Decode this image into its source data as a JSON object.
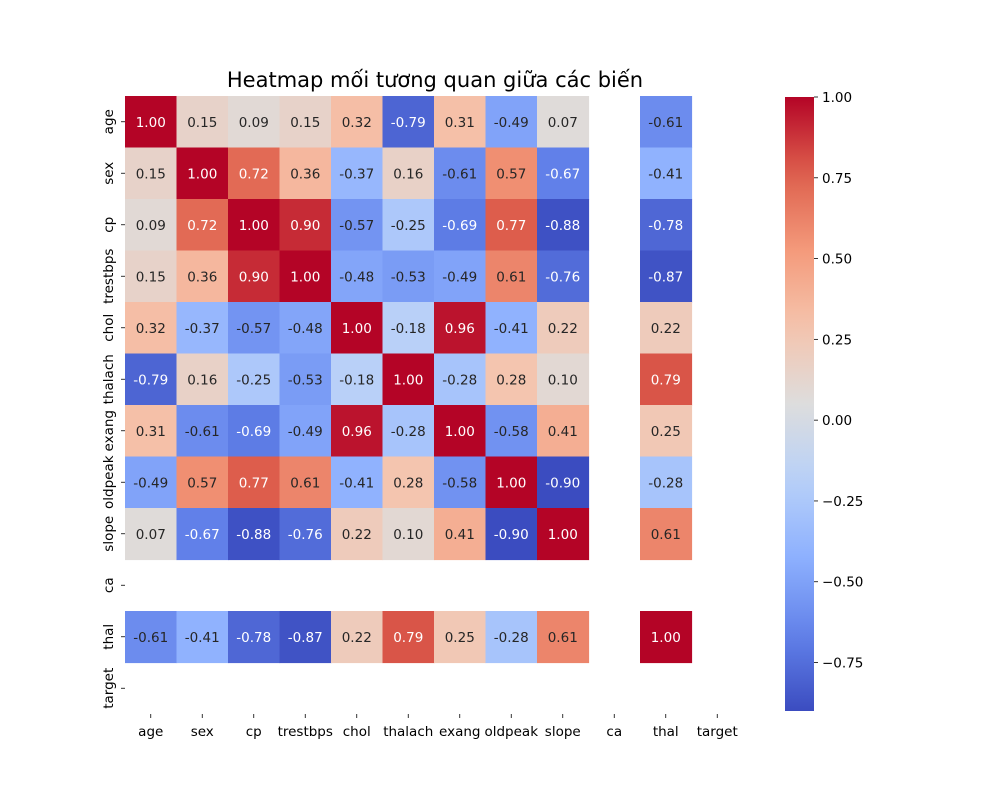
{
  "chart_data": {
    "type": "heatmap",
    "title": "Heatmap mối tương quan giữa các biến",
    "colormap": "coolwarm",
    "vmin": -0.9,
    "vmax": 1.0,
    "labels": [
      "age",
      "sex",
      "cp",
      "trestbps",
      "chol",
      "thalach",
      "exang",
      "oldpeak",
      "slope",
      "ca",
      "thal",
      "target"
    ],
    "matrix": [
      [
        1.0,
        0.15,
        0.09,
        0.15,
        0.32,
        -0.79,
        0.31,
        -0.49,
        0.07,
        null,
        -0.61,
        null
      ],
      [
        0.15,
        1.0,
        0.72,
        0.36,
        -0.37,
        0.16,
        -0.61,
        0.57,
        -0.67,
        null,
        -0.41,
        null
      ],
      [
        0.09,
        0.72,
        1.0,
        0.9,
        -0.57,
        -0.25,
        -0.69,
        0.77,
        -0.88,
        null,
        -0.78,
        null
      ],
      [
        0.15,
        0.36,
        0.9,
        1.0,
        -0.48,
        -0.53,
        -0.49,
        0.61,
        -0.76,
        null,
        -0.87,
        null
      ],
      [
        0.32,
        -0.37,
        -0.57,
        -0.48,
        1.0,
        -0.18,
        0.96,
        -0.41,
        0.22,
        null,
        0.22,
        null
      ],
      [
        -0.79,
        0.16,
        -0.25,
        -0.53,
        -0.18,
        1.0,
        -0.28,
        0.28,
        0.1,
        null,
        0.79,
        null
      ],
      [
        0.31,
        -0.61,
        -0.69,
        -0.49,
        0.96,
        -0.28,
        1.0,
        -0.58,
        0.41,
        null,
        0.25,
        null
      ],
      [
        -0.49,
        0.57,
        0.77,
        0.61,
        -0.41,
        0.28,
        -0.58,
        1.0,
        -0.9,
        null,
        -0.28,
        null
      ],
      [
        0.07,
        -0.67,
        -0.88,
        -0.76,
        0.22,
        0.1,
        0.41,
        -0.9,
        1.0,
        null,
        0.61,
        null
      ],
      [
        null,
        null,
        null,
        null,
        null,
        null,
        null,
        null,
        null,
        null,
        null,
        null
      ],
      [
        -0.61,
        -0.41,
        -0.78,
        -0.87,
        0.22,
        0.79,
        0.25,
        -0.28,
        0.61,
        null,
        1.0,
        null
      ],
      [
        null,
        null,
        null,
        null,
        null,
        null,
        null,
        null,
        null,
        null,
        null,
        null
      ]
    ],
    "colorbar_ticks": [
      "1.00",
      "0.75",
      "0.50",
      "0.25",
      "0.00",
      "−0.25",
      "−0.50",
      "−0.75"
    ],
    "colorbar_tick_values": [
      1.0,
      0.75,
      0.5,
      0.25,
      0.0,
      -0.25,
      -0.5,
      -0.75
    ],
    "annotation_format": "2 decimals"
  }
}
